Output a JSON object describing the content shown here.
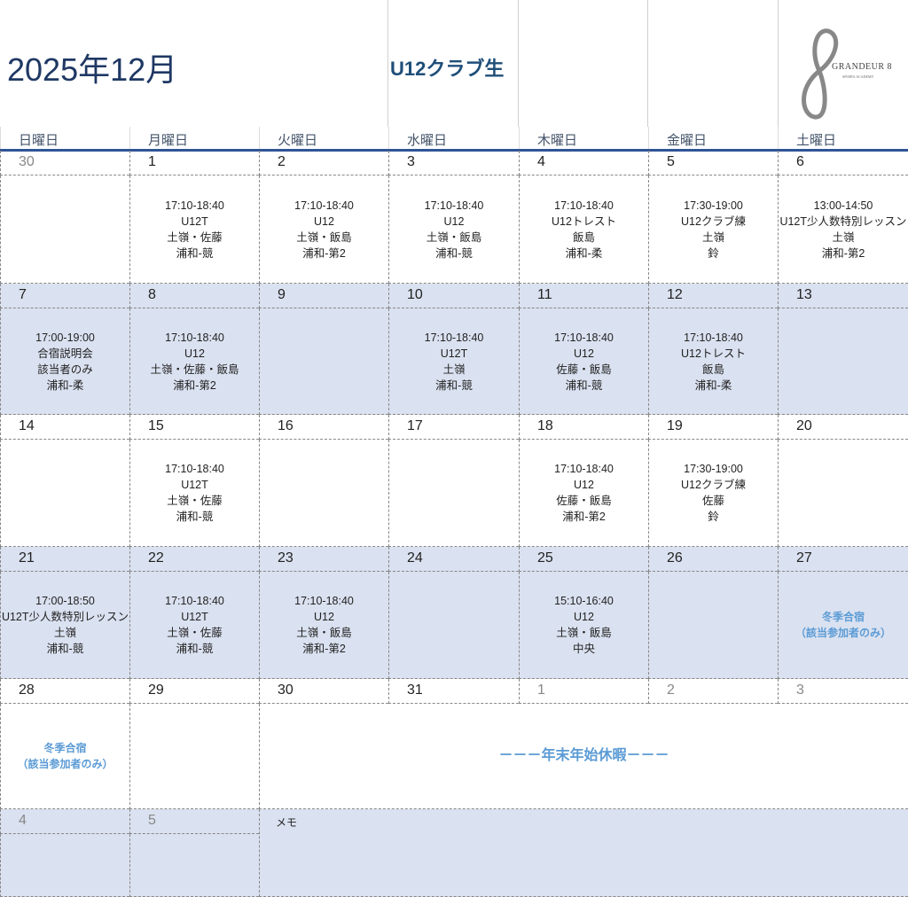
{
  "header": {
    "title": "2025年12月",
    "subtitle": "U12クラブ生",
    "logo_text": "GRANDEUR 8",
    "logo_sub": "SPORTS ACADEMY"
  },
  "day_names": [
    "日曜日",
    "月曜日",
    "火曜日",
    "水曜日",
    "木曜日",
    "金曜日",
    "土曜日"
  ],
  "colors": {
    "shade": "#dae1f0",
    "accent": "#2f5496",
    "special": "#5b9bd5",
    "title": "#1f3864"
  },
  "weeks": [
    {
      "shaded": false,
      "days": [
        {
          "date": "30",
          "muted": true,
          "lines": []
        },
        {
          "date": "1",
          "lines": [
            "17:10-18:40",
            "U12T",
            "土嶺・佐藤",
            "浦和-競"
          ]
        },
        {
          "date": "2",
          "lines": [
            "17:10-18:40",
            "U12",
            "土嶺・飯島",
            "浦和-第2"
          ]
        },
        {
          "date": "3",
          "lines": [
            "17:10-18:40",
            "U12",
            "土嶺・飯島",
            "浦和-競"
          ]
        },
        {
          "date": "4",
          "lines": [
            "17:10-18:40",
            "U12トレスト",
            "飯島",
            "浦和-柔"
          ]
        },
        {
          "date": "5",
          "lines": [
            "17:30-19:00",
            "U12クラブ練",
            "土嶺",
            "鈴"
          ]
        },
        {
          "date": "6",
          "lines": [
            "13:00-14:50",
            "U12T少人数特別レッスン",
            "土嶺",
            "浦和-第2"
          ]
        }
      ]
    },
    {
      "shaded": true,
      "days": [
        {
          "date": "7",
          "lines": [
            "17:00-19:00",
            "合宿説明会",
            "該当者のみ",
            "浦和-柔"
          ]
        },
        {
          "date": "8",
          "lines": [
            "17:10-18:40",
            "U12",
            "土嶺・佐藤・飯島",
            "浦和-第2"
          ]
        },
        {
          "date": "9",
          "lines": []
        },
        {
          "date": "10",
          "lines": [
            "17:10-18:40",
            "U12T",
            "土嶺",
            "浦和-競"
          ]
        },
        {
          "date": "11",
          "lines": [
            "17:10-18:40",
            "U12",
            "佐藤・飯島",
            "浦和-競"
          ]
        },
        {
          "date": "12",
          "lines": [
            "17:10-18:40",
            "U12トレスト",
            "飯島",
            "浦和-柔"
          ]
        },
        {
          "date": "13",
          "lines": []
        }
      ]
    },
    {
      "shaded": false,
      "days": [
        {
          "date": "14",
          "lines": []
        },
        {
          "date": "15",
          "lines": [
            "17:10-18:40",
            "U12T",
            "土嶺・佐藤",
            "浦和-競"
          ]
        },
        {
          "date": "16",
          "lines": []
        },
        {
          "date": "17",
          "lines": []
        },
        {
          "date": "18",
          "lines": [
            "17:10-18:40",
            "U12",
            "佐藤・飯島",
            "浦和-第2"
          ]
        },
        {
          "date": "19",
          "lines": [
            "17:30-19:00",
            "U12クラブ練",
            "佐藤",
            "鈴"
          ]
        },
        {
          "date": "20",
          "lines": []
        }
      ]
    },
    {
      "shaded": true,
      "days": [
        {
          "date": "21",
          "lines": [
            "17:00-18:50",
            "U12T少人数特別レッスン",
            "土嶺",
            "浦和-競"
          ]
        },
        {
          "date": "22",
          "lines": [
            "17:10-18:40",
            "U12T",
            "土嶺・佐藤",
            "浦和-競"
          ]
        },
        {
          "date": "23",
          "lines": [
            "17:10-18:40",
            "U12",
            "土嶺・飯島",
            "浦和-第2"
          ]
        },
        {
          "date": "24",
          "lines": []
        },
        {
          "date": "25",
          "lines": [
            "15:10-16:40",
            "U12",
            "土嶺・飯島",
            "中央"
          ]
        },
        {
          "date": "26",
          "lines": []
        },
        {
          "date": "27",
          "special": [
            "冬季合宿",
            "（該当参加者のみ）"
          ],
          "lines": []
        }
      ]
    },
    {
      "shaded": false,
      "days": [
        {
          "date": "28",
          "special": [
            "冬季合宿",
            "（該当参加者のみ）"
          ],
          "lines": []
        },
        {
          "date": "29",
          "lines": []
        },
        {
          "date": "30",
          "lines": []
        },
        {
          "date": "31",
          "lines": []
        },
        {
          "date": "1",
          "muted": true,
          "lines": []
        },
        {
          "date": "2",
          "muted": true,
          "lines": []
        },
        {
          "date": "3",
          "muted": true,
          "lines": []
        }
      ],
      "merged_text": "－－－年末年始休暇－－－"
    },
    {
      "shaded": true,
      "days": [
        {
          "date": "4",
          "muted": true,
          "lines": []
        },
        {
          "date": "5",
          "muted": true,
          "lines": []
        }
      ],
      "memo_label": "メモ"
    }
  ]
}
